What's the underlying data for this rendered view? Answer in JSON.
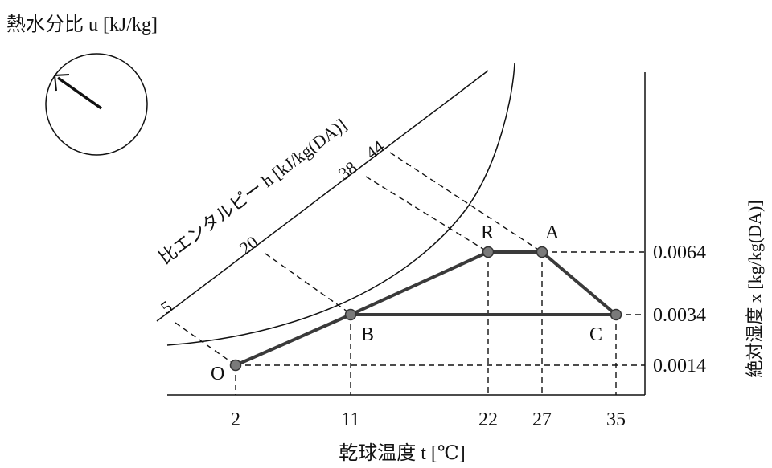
{
  "title": "熱水分比 u [kJ/kg]",
  "enthalpy_label": "比エンタルピー h [kJ/kg(DA)]",
  "x_axis_label": "乾球温度 t [℃]",
  "y_axis_label": "絶対湿度 x [kg/kg(DA)]",
  "x_ticks": [
    "2",
    "11",
    "22",
    "27",
    "35"
  ],
  "y_ticks": [
    "0.0064",
    "0.0034",
    "0.0014"
  ],
  "enthalpy_ticks": [
    "5",
    "20",
    "38",
    "44"
  ],
  "points": [
    {
      "label": "O",
      "t": 2,
      "x": 0.0014
    },
    {
      "label": "B",
      "t": 11,
      "x": 0.0034
    },
    {
      "label": "R",
      "t": 22,
      "x": 0.0064
    },
    {
      "label": "A",
      "t": 27,
      "x": 0.0064
    },
    {
      "label": "C",
      "t": 35,
      "x": 0.0034
    }
  ],
  "process_lines": [
    [
      "O",
      "B"
    ],
    [
      "B",
      "R"
    ],
    [
      "R",
      "A"
    ],
    [
      "A",
      "C"
    ],
    [
      "B",
      "C"
    ]
  ]
}
